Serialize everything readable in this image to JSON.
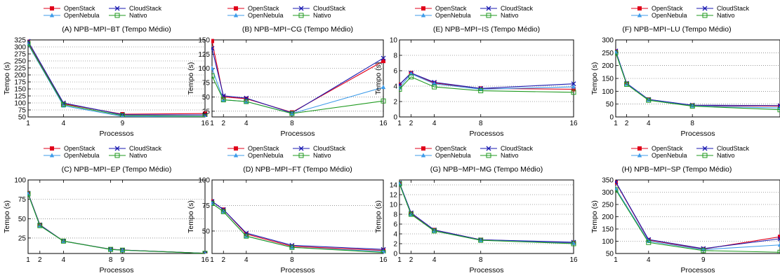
{
  "legend_order": [
    "OpenStack",
    "CloudStack",
    "OpenNebula",
    "Nativo"
  ],
  "series_styles": {
    "OpenStack": {
      "color": "#e0001b",
      "marker": "filled-square"
    },
    "CloudStack": {
      "color": "#1a1ab0",
      "marker": "x"
    },
    "OpenNebula": {
      "color": "#3d9be9",
      "marker": "triangle"
    },
    "Nativo": {
      "color": "#1f9a1f",
      "marker": "open-square"
    }
  },
  "chart_data": [
    {
      "type": "line",
      "title": "(A) NPB−MPI−BT (Tempo Médio)",
      "xlabel": "Processos",
      "ylabel": "Tempo (s)",
      "x": [
        1,
        4,
        9,
        16
      ],
      "x_ticks": [
        1,
        4,
        9,
        16
      ],
      "xlim": [
        1,
        16
      ],
      "ylim": [
        50,
        325
      ],
      "y_ticks": [
        50,
        75,
        100,
        125,
        150,
        175,
        200,
        225,
        250,
        275,
        300,
        325
      ],
      "y_tick_labels": [
        "50",
        "75",
        "100",
        "125",
        "150",
        "175",
        "200",
        "225",
        "250",
        "275",
        "300",
        "325"
      ],
      "grid": true,
      "series": [
        {
          "name": "OpenStack",
          "values": [
            318,
            97,
            60,
            62
          ]
        },
        {
          "name": "CloudStack",
          "values": [
            320,
            100,
            58,
            57
          ]
        },
        {
          "name": "OpenNebula",
          "values": [
            309,
            90,
            52,
            50
          ]
        },
        {
          "name": "Nativo",
          "values": [
            312,
            94,
            55,
            52
          ]
        }
      ]
    },
    {
      "type": "line",
      "title": "(B) NPB−MPI−CG (Tempo Médio)",
      "xlabel": "Processos",
      "ylabel": "Tempo (s)",
      "x": [
        1,
        2,
        4,
        8,
        16
      ],
      "x_ticks": [
        1,
        2,
        4,
        8,
        16
      ],
      "xlim": [
        1,
        16
      ],
      "ylim": [
        15,
        150
      ],
      "y_ticks": [
        25,
        50,
        75,
        100,
        125,
        150
      ],
      "y_tick_labels": [
        "25",
        "50",
        "75",
        "100",
        "125",
        "150"
      ],
      "grid": true,
      "series": [
        {
          "name": "OpenStack",
          "values": [
            148,
            50,
            47,
            23,
            113
          ]
        },
        {
          "name": "CloudStack",
          "values": [
            135,
            52,
            48,
            22,
            118
          ]
        },
        {
          "name": "OpenNebula",
          "values": [
            100,
            45,
            42,
            21,
            67
          ]
        },
        {
          "name": "Nativo",
          "values": [
            87,
            45,
            42,
            21,
            43
          ]
        }
      ]
    },
    {
      "type": "line",
      "title": "(E) NPB−MPI−IS (Tempo Médio)",
      "xlabel": "Processos",
      "ylabel": "Tempo (s)",
      "x": [
        1,
        2,
        4,
        8,
        16
      ],
      "x_ticks": [
        1,
        2,
        4,
        8,
        16
      ],
      "xlim": [
        1,
        16
      ],
      "ylim": [
        0,
        10
      ],
      "y_ticks": [
        0,
        2,
        4,
        6,
        8,
        10
      ],
      "y_tick_labels": [
        "0",
        "2",
        "4",
        "6",
        "8",
        "10"
      ],
      "grid": true,
      "series": [
        {
          "name": "OpenStack",
          "values": [
            4.2,
            5.7,
            4.4,
            3.7,
            3.6
          ]
        },
        {
          "name": "CloudStack",
          "values": [
            4.2,
            5.7,
            4.5,
            3.7,
            4.3
          ]
        },
        {
          "name": "OpenNebula",
          "values": [
            3.8,
            5.6,
            4.3,
            3.6,
            3.9
          ]
        },
        {
          "name": "Nativo",
          "values": [
            3.6,
            5.2,
            3.9,
            3.4,
            3.2
          ]
        }
      ]
    },
    {
      "type": "line",
      "title": "(F) NPB−MPI−LU (Tempo Médio)",
      "xlabel": "Processos",
      "ylabel": "Tempo (s)",
      "x": [
        1,
        2,
        4,
        8,
        16
      ],
      "x_ticks": [
        1,
        2,
        4,
        8
      ],
      "xlim": [
        1,
        16
      ],
      "ylim": [
        0,
        300
      ],
      "y_ticks": [
        0,
        50,
        100,
        150,
        200,
        250,
        300
      ],
      "y_tick_labels": [
        "0",
        "50",
        "100",
        "150",
        "200",
        "250",
        "300"
      ],
      "grid": true,
      "series": [
        {
          "name": "OpenStack",
          "values": [
            255,
            130,
            68,
            45,
            42
          ]
        },
        {
          "name": "CloudStack",
          "values": [
            257,
            131,
            68,
            46,
            44
          ]
        },
        {
          "name": "OpenNebula",
          "values": [
            252,
            128,
            66,
            43,
            35
          ]
        },
        {
          "name": "Nativo",
          "values": [
            250,
            127,
            65,
            42,
            28
          ]
        }
      ]
    },
    {
      "type": "line",
      "title": "(C) NPB−MPI−EP (Tempo Médio)",
      "xlabel": "Processos",
      "ylabel": "Tempo (s)",
      "x": [
        1,
        2,
        4,
        8,
        9,
        16
      ],
      "x_ticks": [
        1,
        2,
        4,
        8,
        9,
        16
      ],
      "xlim": [
        1,
        16
      ],
      "ylim": [
        5,
        100
      ],
      "y_ticks": [
        25,
        50,
        75,
        100
      ],
      "y_tick_labels": [
        "25",
        "50",
        "75",
        "100"
      ],
      "grid": true,
      "series": [
        {
          "name": "OpenStack",
          "values": [
            83,
            42,
            21,
            10.5,
            9.5,
            5.3
          ]
        },
        {
          "name": "CloudStack",
          "values": [
            83,
            42,
            21,
            10.5,
            9.5,
            5.3
          ]
        },
        {
          "name": "OpenNebula",
          "values": [
            82,
            41,
            21,
            10.3,
            9.3,
            5.2
          ]
        },
        {
          "name": "Nativo",
          "values": [
            82,
            41,
            21,
            10.3,
            9.3,
            5.2
          ]
        }
      ]
    },
    {
      "type": "line",
      "title": "(D) NPB−MPI−FT (Tempo Médio)",
      "xlabel": "Processos",
      "ylabel": "Tempo (s)",
      "x": [
        1,
        2,
        4,
        8,
        16
      ],
      "x_ticks": [
        1,
        2,
        4,
        8,
        16
      ],
      "xlim": [
        1,
        16
      ],
      "ylim": [
        28,
        100
      ],
      "y_ticks": [
        50,
        75,
        100
      ],
      "y_tick_labels": [
        "50",
        "75",
        "100"
      ],
      "grid": true,
      "series": [
        {
          "name": "OpenStack",
          "values": [
            79,
            71,
            47,
            35,
            31
          ]
        },
        {
          "name": "CloudStack",
          "values": [
            79,
            71,
            48,
            36,
            32
          ]
        },
        {
          "name": "OpenNebula",
          "values": [
            77,
            69,
            45,
            34,
            30
          ]
        },
        {
          "name": "Nativo",
          "values": [
            77,
            69,
            45,
            34,
            29
          ]
        }
      ]
    },
    {
      "type": "line",
      "title": "(G) NPB−MPI−MG (Tempo Médio)",
      "xlabel": "Processos",
      "ylabel": "Tempo (s)",
      "x": [
        1,
        2,
        4,
        8,
        16
      ],
      "x_ticks": [
        1,
        2,
        4,
        8,
        16
      ],
      "xlim": [
        1,
        16
      ],
      "ylim": [
        0,
        15
      ],
      "y_ticks": [
        0,
        2,
        4,
        6,
        8,
        10,
        12,
        14
      ],
      "y_tick_labels": [
        "0",
        "2",
        "4",
        "6",
        "8",
        "10",
        "12",
        "14"
      ],
      "grid": true,
      "series": [
        {
          "name": "OpenStack",
          "values": [
            14.3,
            8.2,
            4.8,
            2.8,
            2.2
          ]
        },
        {
          "name": "CloudStack",
          "values": [
            14.4,
            8.3,
            4.8,
            2.8,
            2.3
          ]
        },
        {
          "name": "OpenNebula",
          "values": [
            14.2,
            8.0,
            4.6,
            2.7,
            2.1
          ]
        },
        {
          "name": "Nativo",
          "values": [
            14.2,
            8.0,
            4.6,
            2.7,
            2.0
          ]
        }
      ]
    },
    {
      "type": "line",
      "title": "(H) NPB−MPI−SP (Tempo Médio)",
      "xlabel": "Processos",
      "ylabel": "Tempo (s)",
      "x": [
        1,
        4,
        9,
        16
      ],
      "x_ticks": [
        1,
        4,
        9
      ],
      "xlim": [
        1,
        16
      ],
      "ylim": [
        50,
        350
      ],
      "y_ticks": [
        50,
        100,
        150,
        200,
        250,
        300,
        350
      ],
      "y_tick_labels": [
        "50",
        "100",
        "150",
        "200",
        "250",
        "300",
        "350"
      ],
      "grid": true,
      "series": [
        {
          "name": "OpenStack",
          "values": [
            340,
            105,
            68,
            118
          ]
        },
        {
          "name": "CloudStack",
          "values": [
            342,
            107,
            70,
            110
          ]
        },
        {
          "name": "OpenNebula",
          "values": [
            315,
            100,
            66,
            85
          ]
        },
        {
          "name": "Nativo",
          "values": [
            310,
            95,
            62,
            55
          ]
        }
      ]
    }
  ]
}
